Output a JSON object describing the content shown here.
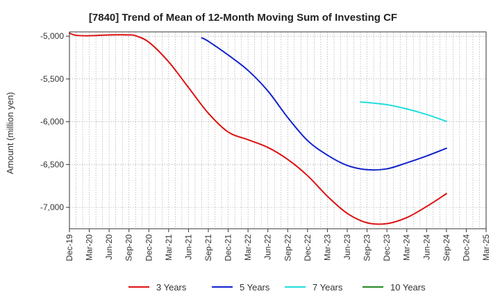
{
  "chart_data": {
    "type": "line",
    "title": "[7840]  Trend of Mean of 12-Month Moving Sum of Investing CF",
    "xlabel": "",
    "ylabel": "Amount (million yen)",
    "ylim": [
      -7250,
      -4950
    ],
    "yticks": [
      -5000,
      -5500,
      -6000,
      -6500,
      -7000
    ],
    "ytick_labels": [
      "-5,000",
      "-5,500",
      "-6,000",
      "-6,500",
      "-7,000"
    ],
    "xlim": [
      "2019-12",
      "2025-03"
    ],
    "xtick_labels": [
      "Dec-19",
      "Mar-20",
      "Jun-20",
      "Sep-20",
      "Dec-20",
      "Mar-21",
      "Jun-21",
      "Sep-21",
      "Dec-21",
      "Mar-22",
      "Jun-22",
      "Sep-22",
      "Dec-22",
      "Mar-23",
      "Jun-23",
      "Sep-23",
      "Dec-23",
      "Mar-24",
      "Jun-24",
      "Sep-24",
      "Dec-24",
      "Mar-25"
    ],
    "grid": true,
    "legend_position": "bottom",
    "series": [
      {
        "name": "3 Years",
        "color": "#dd1111",
        "x": [
          "2019-12",
          "2020-01",
          "2020-03",
          "2020-06",
          "2020-09",
          "2020-10",
          "2020-12",
          "2021-03",
          "2021-06",
          "2021-09",
          "2021-12",
          "2022-03",
          "2022-06",
          "2022-09",
          "2022-12",
          "2023-03",
          "2023-06",
          "2023-09",
          "2023-12",
          "2024-03",
          "2024-06",
          "2024-09"
        ],
        "values": [
          -4965,
          -4990,
          -4995,
          -4985,
          -4985,
          -4995,
          -5070,
          -5300,
          -5600,
          -5900,
          -6120,
          -6210,
          -6300,
          -6440,
          -6630,
          -6870,
          -7070,
          -7180,
          -7190,
          -7120,
          -6990,
          -6840
        ]
      },
      {
        "name": "5 Years",
        "color": "#1122cc",
        "x": [
          "2021-08",
          "2021-09",
          "2021-12",
          "2022-03",
          "2022-06",
          "2022-09",
          "2022-12",
          "2023-03",
          "2023-06",
          "2023-09",
          "2023-12",
          "2024-03",
          "2024-06",
          "2024-09"
        ],
        "values": [
          -5020,
          -5060,
          -5220,
          -5400,
          -5640,
          -5950,
          -6220,
          -6390,
          -6510,
          -6560,
          -6550,
          -6480,
          -6400,
          -6310
        ]
      },
      {
        "name": "7 Years",
        "color": "#22dddd",
        "x": [
          "2023-08",
          "2023-09",
          "2023-12",
          "2024-03",
          "2024-06",
          "2024-09"
        ],
        "values": [
          -5770,
          -5775,
          -5800,
          -5850,
          -5915,
          -5995
        ]
      },
      {
        "name": "10 Years",
        "color": "#228822",
        "x": [],
        "values": []
      }
    ]
  }
}
